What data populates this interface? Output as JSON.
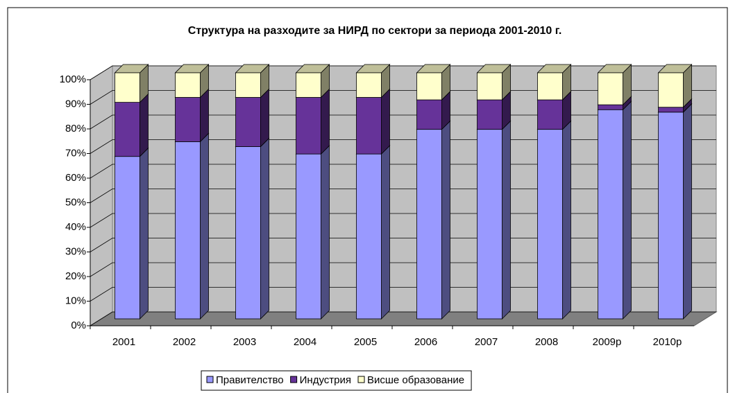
{
  "chart_data": {
    "type": "bar",
    "stacked": true,
    "title": "Структура на разходите за НИРД по сектори за периода 2001-2010 г.",
    "categories": [
      "2001",
      "2002",
      "2003",
      "2004",
      "2005",
      "2006",
      "2007",
      "2008",
      "2009р",
      "2010р"
    ],
    "series": [
      {
        "name": "Правителство",
        "color": "#9999ff",
        "values": [
          66,
          72,
          70,
          67,
          67,
          77,
          77,
          77,
          85,
          84
        ]
      },
      {
        "name": "Индустрия",
        "color": "#663399",
        "values": [
          22,
          18,
          20,
          23,
          23,
          12,
          12,
          12,
          2,
          2
        ]
      },
      {
        "name": "Висше образование",
        "color": "#ffffcc",
        "values": [
          12,
          10,
          10,
          10,
          10,
          11,
          11,
          11,
          13,
          14
        ]
      }
    ],
    "ylim": [
      0,
      100
    ],
    "yticks": [
      {
        "value": 0,
        "label": "0%"
      },
      {
        "value": 10,
        "label": "10%"
      },
      {
        "value": 20,
        "label": "20%"
      },
      {
        "value": 30,
        "label": "30%"
      },
      {
        "value": 40,
        "label": "40%"
      },
      {
        "value": 50,
        "label": "50%"
      },
      {
        "value": 60,
        "label": "60%"
      },
      {
        "value": 70,
        "label": "70%"
      },
      {
        "value": 80,
        "label": "80%"
      },
      {
        "value": 90,
        "label": "90%"
      },
      {
        "value": 100,
        "label": "100%"
      }
    ],
    "grid": true,
    "legend": "bottom"
  }
}
